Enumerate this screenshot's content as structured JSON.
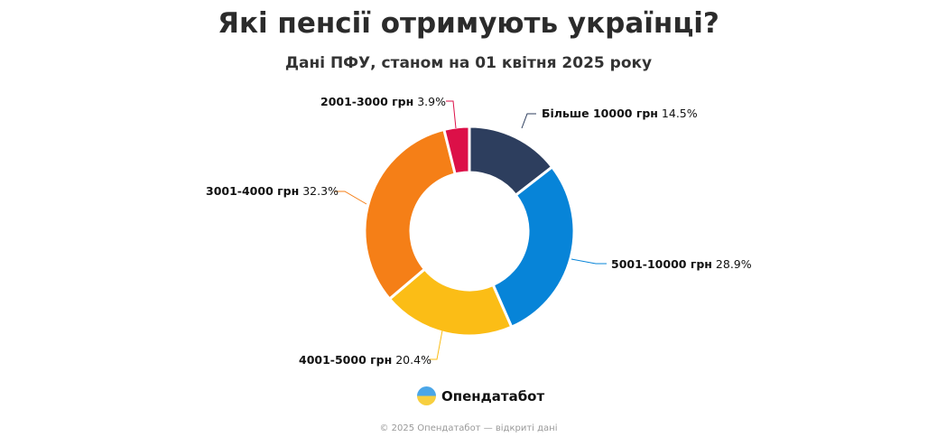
{
  "title": "Які пенсії отримують українці?",
  "subtitle": "Дані ПФУ, станом на 01 квітня 2025 року",
  "brand": "Опендатабот",
  "footer": "© 2025 Опендатабот — відкриті дані",
  "chart_data": {
    "type": "pie",
    "donut": true,
    "title": "Які пенсії отримують українці?",
    "subtitle": "Дані ПФУ, станом на 01 квітня 2025 року",
    "slices": [
      {
        "label": "Більше 10000 грн",
        "value": 14.5,
        "value_text": "14.5%",
        "color": "#2d3e5e"
      },
      {
        "label": "5001-10000 грн",
        "value": 28.9,
        "value_text": "28.9%",
        "color": "#0784d8"
      },
      {
        "label": "4001-5000 грн",
        "value": 20.4,
        "value_text": "20.4%",
        "color": "#fbbd16"
      },
      {
        "label": "3001-4000 грн",
        "value": 32.3,
        "value_text": "32.3%",
        "color": "#f57f17"
      },
      {
        "label": "2001-3000 грн",
        "value": 3.9,
        "value_text": "3.9%",
        "color": "#dc1048"
      }
    ]
  }
}
